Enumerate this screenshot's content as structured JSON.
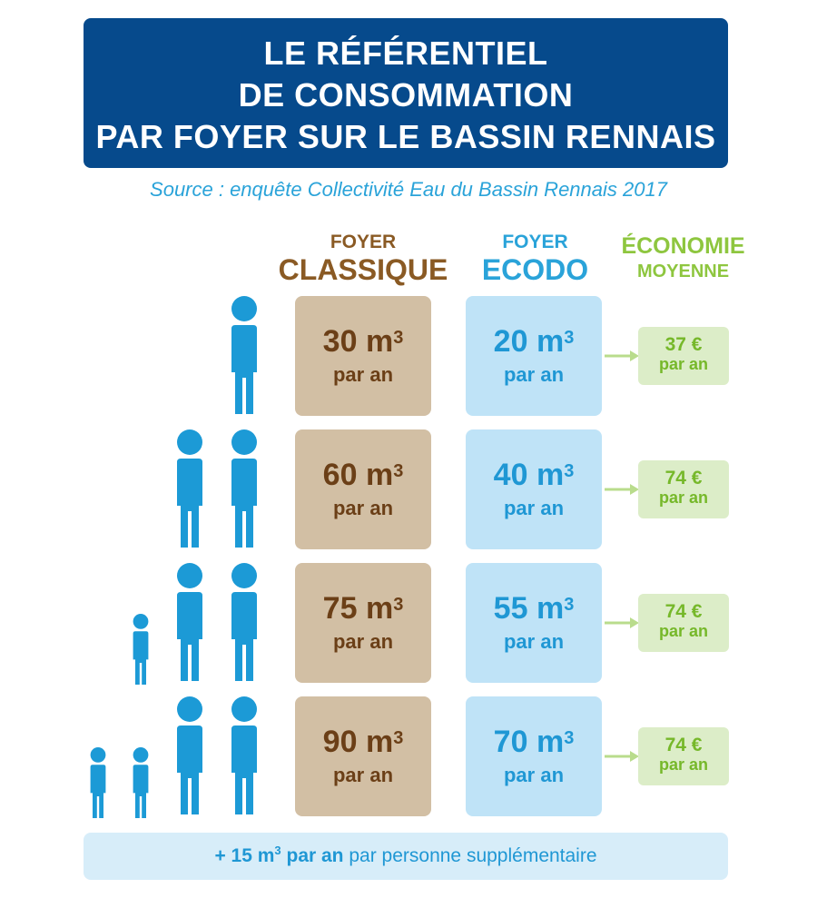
{
  "title": {
    "line1": "LE RÉFÉRENTIEL",
    "line2": "DE CONSOMMATION",
    "line3": "PAR FOYER SUR LE BASSIN RENNAIS"
  },
  "source": "Source : enquête Collectivité Eau du Bassin Rennais 2017",
  "headers": {
    "classique_small": "FOYER",
    "classique_big": "CLASSIQUE",
    "ecodo_small": "FOYER",
    "ecodo_big": "ECODO",
    "economie_line1": "ÉCONOMIE",
    "economie_line2": "MOYENNE"
  },
  "unit_m3": "m",
  "unit_exp": "3",
  "unit_per_year": "par an",
  "rows": [
    {
      "adults": 1,
      "children": 0,
      "classique": "30",
      "ecodo": "20",
      "saving": "37 €"
    },
    {
      "adults": 2,
      "children": 0,
      "classique": "60",
      "ecodo": "40",
      "saving": "74 €"
    },
    {
      "adults": 2,
      "children": 1,
      "classique": "75",
      "ecodo": "55",
      "saving": "74 €"
    },
    {
      "adults": 2,
      "children": 2,
      "classique": "90",
      "ecodo": "70",
      "saving": "74 €"
    }
  ],
  "footer": {
    "bold": "+ 15 m",
    "exp": "3",
    "bold_tail": " par an",
    "rest": " par personne supplémentaire"
  },
  "colors": {
    "title_bg": "#064a8c",
    "person": "#1c9ad6",
    "classique_bg": "#d2bfa4",
    "ecodo_bg": "#bfe3f7",
    "economie": "#8ec63f"
  }
}
